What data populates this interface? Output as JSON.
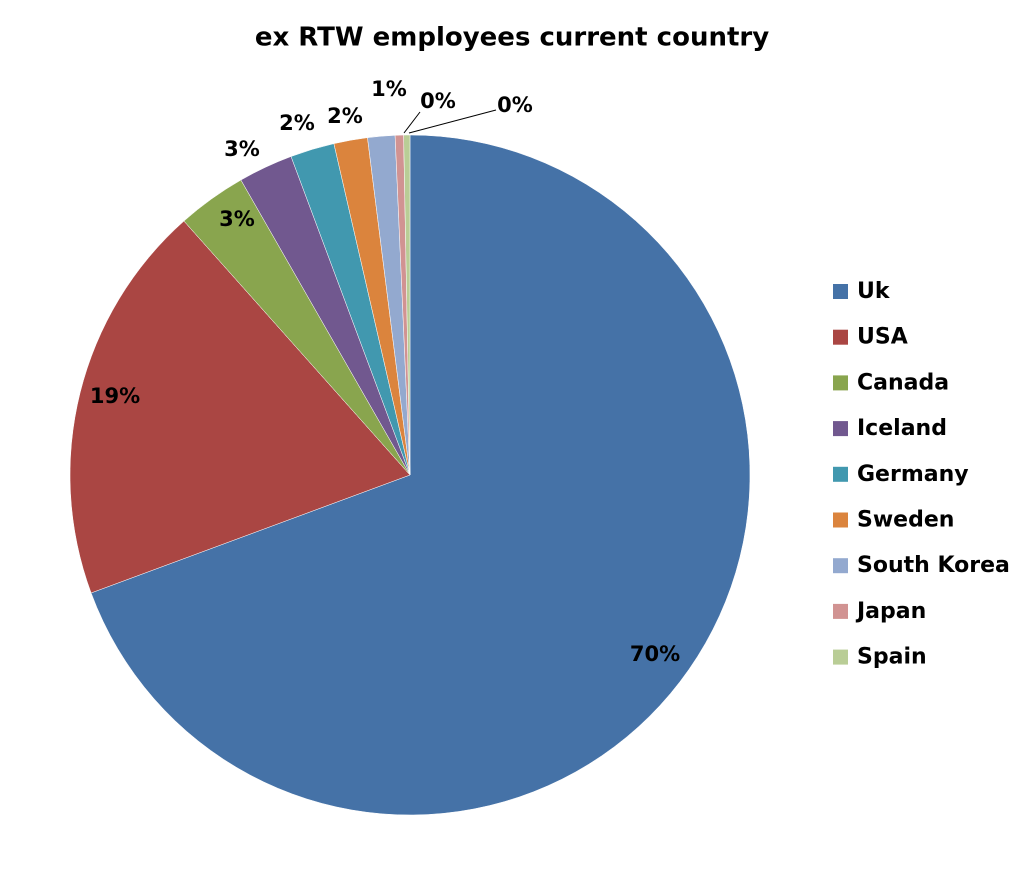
{
  "chart_data": {
    "type": "pie",
    "title": "ex RTW employees current country",
    "categories": [
      "Uk",
      "USA",
      "Canada",
      "Iceland",
      "Germany",
      "Sweden",
      "South Korea",
      "Japan",
      "Spain"
    ],
    "values": [
      69.5,
      19.1,
      3.3,
      2.6,
      2.1,
      1.6,
      1.3,
      0.4,
      0.3
    ],
    "value_labels": [
      "70%",
      "19%",
      "3%",
      "3%",
      "2%",
      "2%",
      "1%",
      "0%",
      "0%"
    ],
    "colors": [
      "#4572a7",
      "#aa4643",
      "#89a54e",
      "#71588f",
      "#4198af",
      "#db843d",
      "#93a9cf",
      "#d19392",
      "#b9cd96"
    ],
    "legend": "right"
  }
}
